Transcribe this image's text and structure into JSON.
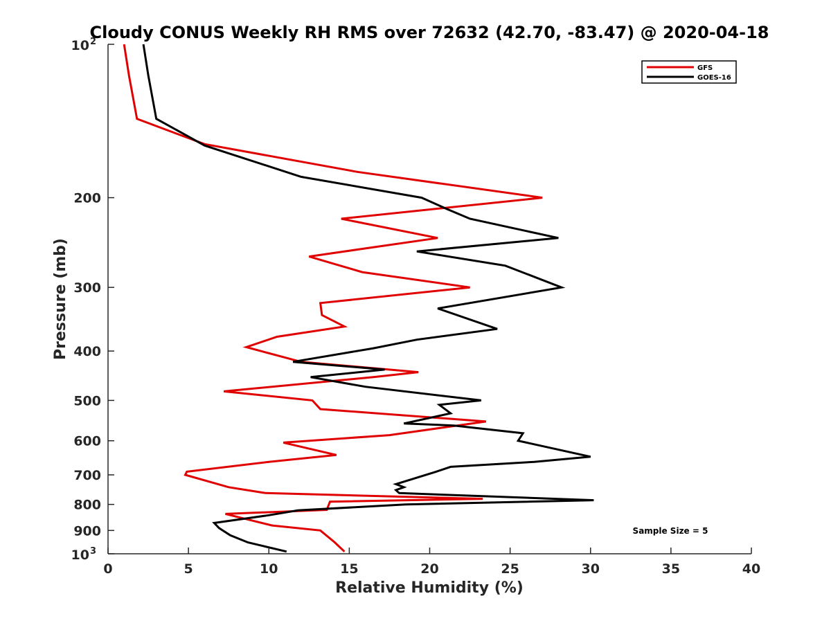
{
  "chart_data": {
    "type": "line",
    "title": "Cloudy CONUS Weekly RH RMS over 72632 (42.70, -83.47) @ 2020-04-18",
    "xlabel": "Relative Humidity (%)",
    "ylabel": "Pressure (mb)",
    "xlim": [
      0,
      40
    ],
    "ylim": [
      100,
      1000
    ],
    "y_scale": "log",
    "y_reversed": true,
    "grid": false,
    "legend_position": "top-right",
    "x_ticks": [
      "0",
      "5",
      "10",
      "15",
      "20",
      "25",
      "30",
      "35",
      "40"
    ],
    "y_ticks": [
      {
        "value": 100,
        "base": "10",
        "exp": "2"
      },
      {
        "value": 200,
        "label": "200"
      },
      {
        "value": 300,
        "label": "300"
      },
      {
        "value": 400,
        "label": "400"
      },
      {
        "value": 500,
        "label": "500"
      },
      {
        "value": 600,
        "label": "600"
      },
      {
        "value": 700,
        "label": "700"
      },
      {
        "value": 800,
        "label": "800"
      },
      {
        "value": 900,
        "label": "900"
      },
      {
        "value": 1000,
        "base": "10",
        "exp": "3"
      }
    ],
    "annotation": "Sample Size = 5",
    "series": [
      {
        "name": "GFS",
        "color": "#e00000",
        "points": [
          [
            1.0,
            100
          ],
          [
            1.3,
            115
          ],
          [
            1.8,
            140
          ],
          [
            6.0,
            157
          ],
          [
            15.5,
            178
          ],
          [
            27.0,
            200
          ],
          [
            14.5,
            220
          ],
          [
            20.5,
            240
          ],
          [
            12.5,
            261
          ],
          [
            15.8,
            280
          ],
          [
            22.5,
            300
          ],
          [
            13.2,
            322
          ],
          [
            13.3,
            340
          ],
          [
            14.7,
            358
          ],
          [
            10.5,
            375
          ],
          [
            8.6,
            393
          ],
          [
            12.0,
            420
          ],
          [
            19.3,
            440
          ],
          [
            16.5,
            450
          ],
          [
            7.2,
            480
          ],
          [
            12.7,
            500
          ],
          [
            13.2,
            520
          ],
          [
            23.5,
            550
          ],
          [
            17.5,
            585
          ],
          [
            10.9,
            605
          ],
          [
            14.2,
            640
          ],
          [
            10.0,
            660
          ],
          [
            4.9,
            690
          ],
          [
            4.8,
            700
          ],
          [
            7.5,
            740
          ],
          [
            9.8,
            760
          ],
          [
            23.3,
            780
          ],
          [
            13.8,
            790
          ],
          [
            13.6,
            820
          ],
          [
            7.3,
            835
          ],
          [
            10.2,
            880
          ],
          [
            13.2,
            900
          ],
          [
            14.1,
            950
          ],
          [
            14.7,
            990
          ]
        ]
      },
      {
        "name": "GOES-16",
        "color": "#000000",
        "points": [
          [
            2.2,
            100
          ],
          [
            2.5,
            115
          ],
          [
            3.0,
            140
          ],
          [
            6.0,
            158
          ],
          [
            12.0,
            182
          ],
          [
            19.5,
            200
          ],
          [
            21.0,
            210
          ],
          [
            22.5,
            220
          ],
          [
            28.0,
            240
          ],
          [
            19.2,
            255
          ],
          [
            24.7,
            272
          ],
          [
            28.2,
            300
          ],
          [
            20.5,
            330
          ],
          [
            24.2,
            362
          ],
          [
            19.2,
            380
          ],
          [
            16.5,
            395
          ],
          [
            11.5,
            420
          ],
          [
            17.2,
            435
          ],
          [
            12.6,
            450
          ],
          [
            16.0,
            470
          ],
          [
            23.2,
            500
          ],
          [
            20.6,
            510
          ],
          [
            21.3,
            530
          ],
          [
            18.4,
            555
          ],
          [
            21.5,
            560
          ],
          [
            25.8,
            580
          ],
          [
            25.5,
            600
          ],
          [
            30.0,
            645
          ],
          [
            26.5,
            660
          ],
          [
            21.3,
            675
          ],
          [
            20.4,
            690
          ],
          [
            17.9,
            730
          ],
          [
            18.4,
            740
          ],
          [
            17.9,
            750
          ],
          [
            18.1,
            760
          ],
          [
            30.2,
            785
          ],
          [
            18.5,
            800
          ],
          [
            11.8,
            822
          ],
          [
            10.0,
            840
          ],
          [
            6.6,
            870
          ],
          [
            6.9,
            890
          ],
          [
            7.6,
            920
          ],
          [
            8.7,
            950
          ],
          [
            11.1,
            990
          ]
        ]
      }
    ]
  }
}
